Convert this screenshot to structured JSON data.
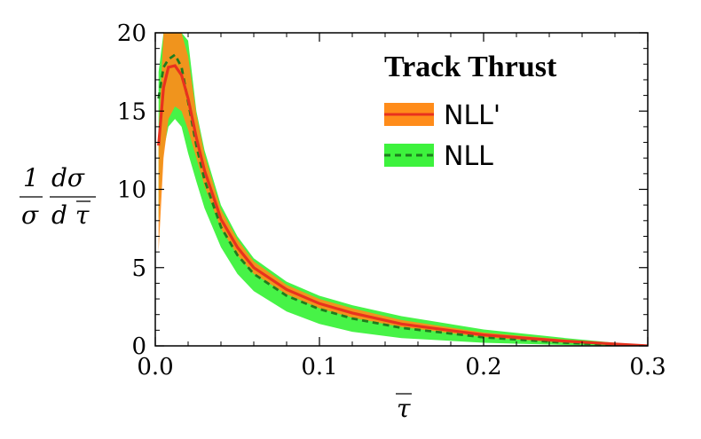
{
  "chart_data": {
    "type": "area",
    "title": "",
    "xlabel": "τ̄",
    "ylabel": "1/σ dσ/dτ̄",
    "xlim": [
      0.0,
      0.3
    ],
    "ylim": [
      0,
      20
    ],
    "xticks": [
      "0.0",
      "0.1",
      "0.2",
      "0.3"
    ],
    "yticks": [
      "0",
      "5",
      "10",
      "15",
      "20"
    ],
    "legend": {
      "title": "Track Thrust",
      "position": "top-right"
    },
    "grid": false,
    "series": [
      {
        "name": "NLL'",
        "style": "solid line with orange band",
        "line_color": "#e8321e",
        "band_color": "#ff8c1a",
        "x": [
          0.002,
          0.005,
          0.008,
          0.012,
          0.016,
          0.02,
          0.025,
          0.03,
          0.04,
          0.05,
          0.06,
          0.08,
          0.1,
          0.12,
          0.15,
          0.2,
          0.25,
          0.3
        ],
        "y": [
          12.8,
          16.5,
          17.8,
          17.9,
          17.3,
          15.8,
          13.3,
          11.2,
          8.1,
          6.3,
          5.0,
          3.6,
          2.7,
          2.1,
          1.4,
          0.7,
          0.3,
          0.0
        ],
        "lower": [
          6.0,
          12.0,
          14.5,
          15.3,
          15.0,
          13.8,
          12.0,
          10.2,
          7.5,
          5.8,
          4.6,
          3.3,
          2.4,
          1.8,
          1.2,
          0.55,
          0.2,
          0.0
        ],
        "upper": [
          13.5,
          20.0,
          20.0,
          20.0,
          20.0,
          18.5,
          14.8,
          12.2,
          8.7,
          6.8,
          5.4,
          3.9,
          3.0,
          2.4,
          1.65,
          0.85,
          0.4,
          0.0
        ]
      },
      {
        "name": "NLL",
        "style": "dashed line with green band",
        "line_color": "#1e7d1e",
        "band_color": "#3df23d",
        "x": [
          0.002,
          0.005,
          0.008,
          0.012,
          0.016,
          0.02,
          0.025,
          0.03,
          0.04,
          0.05,
          0.06,
          0.08,
          0.1,
          0.12,
          0.15,
          0.2,
          0.25,
          0.3
        ],
        "y": [
          15.8,
          17.8,
          18.3,
          18.6,
          17.8,
          15.6,
          12.8,
          10.6,
          7.6,
          5.8,
          4.6,
          3.2,
          2.35,
          1.75,
          1.15,
          0.55,
          0.2,
          0.0
        ],
        "lower": [
          8.0,
          12.5,
          14.0,
          14.5,
          14.0,
          12.3,
          10.5,
          8.8,
          6.3,
          4.6,
          3.5,
          2.2,
          1.4,
          0.9,
          0.5,
          0.2,
          0.05,
          0.0
        ],
        "upper": [
          17.5,
          20.0,
          20.0,
          20.0,
          20.0,
          19.5,
          15.0,
          12.5,
          9.0,
          7.0,
          5.6,
          4.1,
          3.2,
          2.6,
          1.9,
          1.05,
          0.5,
          0.0
        ]
      }
    ]
  }
}
